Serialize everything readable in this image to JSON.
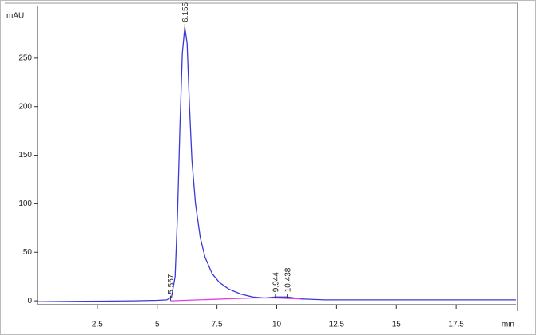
{
  "chart_data": {
    "type": "line",
    "ylabel": "mAU",
    "xlabel": "min",
    "xlim": [
      0,
      20
    ],
    "ylim": [
      -4,
      300
    ],
    "xticks": [
      2.5,
      5,
      7.5,
      10,
      12.5,
      15,
      17.5
    ],
    "yticks": [
      0,
      50,
      100,
      150,
      200,
      250
    ],
    "series": [
      {
        "color": "#3a3ad8",
        "x": [
          0,
          2,
          4,
          5,
          5.4,
          5.6,
          5.75,
          5.85,
          5.95,
          6.05,
          6.155,
          6.25,
          6.35,
          6.45,
          6.6,
          6.8,
          7,
          7.3,
          7.6,
          8,
          8.5,
          9,
          9.5,
          9.944,
          10.438,
          11,
          12,
          15,
          20
        ],
        "values": [
          -1,
          -0.5,
          0,
          0.5,
          1,
          4,
          25,
          90,
          180,
          255,
          282,
          265,
          200,
          145,
          100,
          65,
          45,
          28,
          19,
          12,
          7,
          4,
          3,
          4,
          4,
          2,
          1,
          1,
          1
        ]
      },
      {
        "color": "#e040e0",
        "x": [
          5.557,
          9.0,
          9.944,
          11.0
        ],
        "values": [
          0,
          3,
          3,
          2
        ]
      }
    ],
    "peaks": [
      {
        "x": 5.557,
        "y": 2,
        "label": "5.557"
      },
      {
        "x": 6.155,
        "y": 282,
        "label": "6.155"
      },
      {
        "x": 9.944,
        "y": 4,
        "label": "9.944"
      },
      {
        "x": 10.438,
        "y": 4,
        "label": "10.438"
      }
    ]
  }
}
